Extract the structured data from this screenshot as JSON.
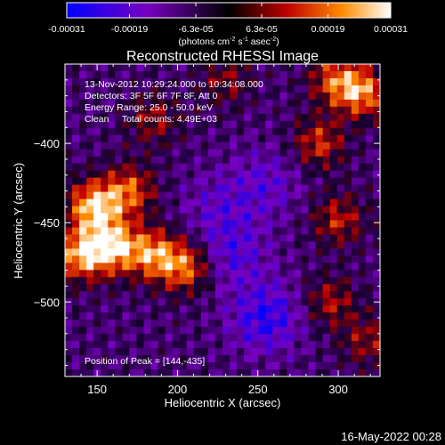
{
  "chart_data": {
    "type": "heatmap",
    "title": "Reconstructed RHESSI Image",
    "xlabel": "Heliocentric X (arcsec)",
    "ylabel": "Heliocentric Y (arcsec)",
    "xlim": [
      130,
      326
    ],
    "ylim": [
      -547,
      -350
    ],
    "x_ticks": [
      150,
      200,
      250,
      300
    ],
    "y_ticks": [
      -400,
      -450,
      -500
    ],
    "colorbar": {
      "range": [
        -0.00031,
        0.00031
      ],
      "tick_labels": [
        "-0.00031",
        "-0.00019",
        "-6.3e-05",
        "6.3e-05",
        "0.00019",
        "0.00031"
      ],
      "tick_values": [
        -0.00031,
        -0.00019,
        -6.3e-05,
        6.3e-05,
        0.00019,
        0.00031
      ],
      "units_label": "(photons cm",
      "units_exp1": "-2",
      "units_mid": " s",
      "units_exp2": "-1",
      "units_mid2": " asec",
      "units_exp3": "-2",
      "units_end": ")"
    },
    "annotations": {
      "time_range": "13-Nov-2012 10:29:24.000 to 10:34:08.000",
      "detectors": "Detectors: 3F 5F 6F 7F 8F, Att 0",
      "energy": "Energy Range: 25.0 - 50.0 keV",
      "clean": "Clean     Total counts: 4.49E+03",
      "peak": "Position of Peak = [144,-435]"
    },
    "peak": [
      144,
      -435
    ],
    "bright_regions": [
      {
        "x": 148,
        "y": -440,
        "level": 0.95
      },
      {
        "x": 160,
        "y": -465,
        "level": 0.9
      },
      {
        "x": 140,
        "y": -470,
        "level": 0.85
      },
      {
        "x": 185,
        "y": -470,
        "level": 0.75
      },
      {
        "x": 205,
        "y": -478,
        "level": 0.7
      },
      {
        "x": 170,
        "y": -430,
        "level": 0.65
      },
      {
        "x": 315,
        "y": -368,
        "level": 0.75
      },
      {
        "x": 298,
        "y": -360,
        "level": 0.6
      },
      {
        "x": 288,
        "y": -400,
        "level": 0.55
      },
      {
        "x": 300,
        "y": -448,
        "level": 0.5
      },
      {
        "x": 295,
        "y": -500,
        "level": 0.45
      },
      {
        "x": 318,
        "y": -525,
        "level": 0.4
      },
      {
        "x": 185,
        "y": -385,
        "level": 0.4
      },
      {
        "x": 230,
        "y": -360,
        "level": 0.35
      }
    ],
    "dark_regions": [
      {
        "x": 255,
        "y": -510,
        "level": -0.6
      },
      {
        "x": 235,
        "y": -470,
        "level": -0.4
      },
      {
        "x": 255,
        "y": -425,
        "level": -0.35
      },
      {
        "x": 225,
        "y": -440,
        "level": -0.3
      }
    ]
  },
  "footer_date": "16-May-2022 00:28"
}
